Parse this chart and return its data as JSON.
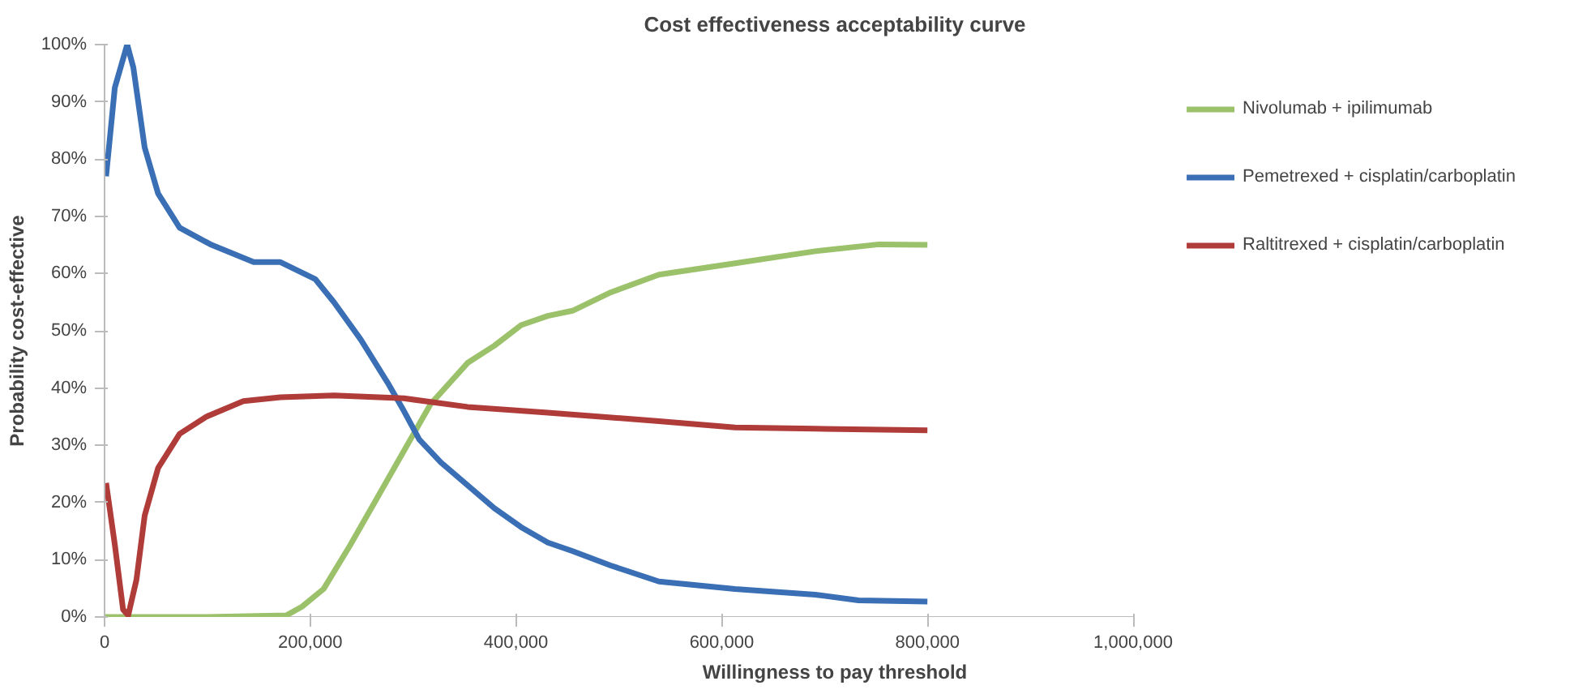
{
  "chart_data": {
    "type": "line",
    "title": "Cost effectiveness acceptability curve",
    "xlabel": "Willingness to pay threshold",
    "ylabel": "Probability cost-effective",
    "xlim": [
      0,
      1000000
    ],
    "xticks": [
      0,
      {
        "value": 200000,
        "label": "200,000"
      },
      {
        "value": 400000,
        "label": "400,000"
      },
      {
        "value": 600000,
        "label": "600,000"
      },
      {
        "value": 800000,
        "label": "800,000"
      },
      {
        "value": 1000000,
        "label": "1,000,000"
      }
    ],
    "ylim": [
      0,
      100
    ],
    "yticks": [
      {
        "value": 0,
        "label": "0%"
      },
      {
        "value": 10,
        "label": "10%"
      },
      {
        "value": 20,
        "label": "20%"
      },
      {
        "value": 30,
        "label": "30%"
      },
      {
        "value": 40,
        "label": "40%"
      },
      {
        "value": 50,
        "label": "50%"
      },
      {
        "value": 60,
        "label": "60%"
      },
      {
        "value": 70,
        "label": "70%"
      },
      {
        "value": 80,
        "label": "80%"
      },
      {
        "value": 90,
        "label": "90%"
      },
      {
        "value": 100,
        "label": "100%"
      }
    ],
    "grid": false,
    "legend": "right",
    "marker": "none",
    "line_style": "solid",
    "series": [
      {
        "name": "Nivolumab + ipilimumab",
        "color": "#9bc26b",
        "x": [
          0,
          100000,
          177000,
          192000,
          213000,
          239000,
          265000,
          291000,
          317000,
          353000,
          379000,
          405000,
          431000,
          455000,
          492000,
          539000,
          613000,
          691000,
          753000,
          800000
        ],
        "values": [
          0,
          0,
          0.3,
          1.8,
          4.9,
          12.6,
          20.8,
          29,
          37.2,
          44.4,
          47.4,
          51,
          52.6,
          53.5,
          56.7,
          59.8,
          61.8,
          63.9,
          65.1,
          65
        ]
      },
      {
        "name": "Pemetrexed + cisplatin/carboplatin",
        "color": "#3a6fb5",
        "x": [
          1500,
          10000,
          22000,
          28000,
          39000,
          52000,
          73000,
          104000,
          145000,
          171000,
          205000,
          223000,
          249000,
          275000,
          291000,
          306000,
          327000,
          353000,
          379000,
          405000,
          431000,
          455000,
          492000,
          539000,
          613000,
          691000,
          733000,
          800000
        ],
        "values": [
          77,
          92.5,
          100,
          96,
          82,
          74,
          68,
          65,
          62,
          62,
          59,
          55,
          48.5,
          41,
          36,
          31,
          27,
          23,
          19,
          15.7,
          13,
          11.5,
          9,
          6.2,
          4.9,
          3.9,
          2.9,
          2.7
        ]
      },
      {
        "name": "Raltitrexed + cisplatin/carboplatin",
        "color": "#b03c3a",
        "x": [
          1500,
          10000,
          18000,
          23000,
          31000,
          39000,
          52000,
          73000,
          99000,
          135000,
          171000,
          223000,
          291000,
          353000,
          431000,
          539000,
          613000,
          691000,
          800000
        ],
        "values": [
          23.4,
          12.6,
          1.3,
          0.3,
          6.5,
          17.7,
          26,
          32,
          35,
          37.7,
          38.4,
          38.7,
          38.2,
          36.7,
          35.7,
          34.2,
          33.1,
          32.9,
          32.6
        ]
      }
    ]
  }
}
